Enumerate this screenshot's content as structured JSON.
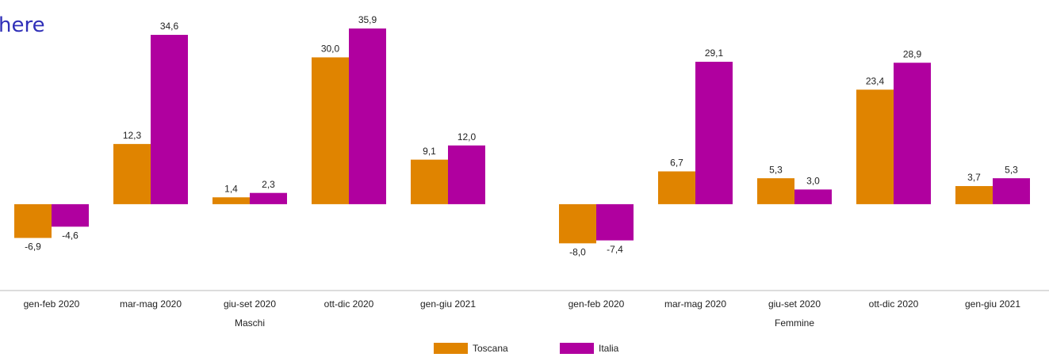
{
  "page_text": "here",
  "chart_data": {
    "type": "bar",
    "categories": [
      "gen-feb 2020",
      "mar-mag 2020",
      "giu-set 2020",
      "ott-dic 2020",
      "gen-giu 2021",
      "gen-feb 2020",
      "mar-mag 2020",
      "giu-set 2020",
      "ott-dic 2020",
      "gen-giu 2021"
    ],
    "x_group_labels": [
      "Maschi",
      "Femmine"
    ],
    "series": [
      {
        "name": "Toscana",
        "color": "#e08400",
        "values": [
          -6.9,
          12.3,
          1.4,
          30.0,
          9.1,
          -8.0,
          6.7,
          5.3,
          23.4,
          3.7
        ],
        "value_labels": [
          "-6,9",
          "12,3",
          "1,4",
          "30,0",
          "9,1",
          "-8,0",
          "6,7",
          "5,3",
          "23,4",
          "3,7"
        ]
      },
      {
        "name": "Italia",
        "color": "#b0009f",
        "values": [
          -4.6,
          34.6,
          2.3,
          35.9,
          12.0,
          -7.4,
          29.1,
          3.0,
          28.9,
          5.3
        ],
        "value_labels": [
          "-4,6",
          "34,6",
          "2,3",
          "35,9",
          "12,0",
          "-7,4",
          "29,1",
          "3,0",
          "28,9",
          "5,3"
        ]
      }
    ],
    "ylim": [
      -17,
      38
    ],
    "legend": "bottom"
  }
}
